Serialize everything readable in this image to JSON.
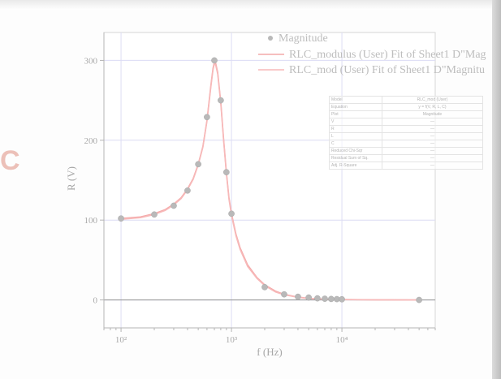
{
  "colors": {
    "fit_line": "#f4a8a8",
    "fit_line_2": "#f7b9b9",
    "points": "#b9b9b9",
    "axis": "#b5b5b5",
    "grid": "#dcdcf4",
    "zero_line": "#9c9c9c",
    "logo": "#e8b1a8"
  },
  "chart_data": {
    "type": "scatter",
    "x_scale": "log",
    "xlabel": "f (Hz)",
    "ylabel": "R (V)",
    "xlim": [
      70,
      70000
    ],
    "ylim": [
      -35,
      335
    ],
    "x_ticks": [
      100,
      1000,
      10000
    ],
    "x_tick_labels": [
      "10²",
      "10³",
      "10⁴"
    ],
    "y_ticks": [
      0,
      100,
      200,
      300
    ],
    "y_tick_labels": [
      "0",
      "100",
      "200",
      "300"
    ],
    "grid": true,
    "legend_position": "top-right",
    "legend": [
      {
        "label": "Magnitude",
        "marker": "circle"
      },
      {
        "label": "RLC_modulus (User) Fit of Sheet1 D\"Mag",
        "marker": "line"
      },
      {
        "label": "RLC_mod (User) Fit of Sheet1 D\"Magnitu",
        "marker": "line"
      }
    ],
    "series": [
      {
        "name": "Magnitude",
        "kind": "scatter",
        "x": [
          100,
          200,
          300,
          400,
          500,
          600,
          700,
          800,
          900,
          1000,
          2000,
          3000,
          4000,
          5000,
          6000,
          7000,
          8000,
          9000,
          10000,
          50000
        ],
        "y": [
          102,
          107,
          118,
          137,
          170,
          229,
          300,
          250,
          160,
          108,
          16,
          7,
          4,
          3,
          2,
          1.5,
          1.2,
          1,
          0.8,
          0
        ]
      },
      {
        "name": "RLC_modulus (User) Fit of Sheet1 D\"Mag",
        "kind": "line",
        "x": [
          100,
          150,
          200,
          250,
          300,
          350,
          400,
          450,
          500,
          550,
          600,
          650,
          680,
          700,
          720,
          750,
          800,
          850,
          900,
          950,
          1000,
          1100,
          1200,
          1400,
          1700,
          2000,
          2500,
          3000,
          4000,
          5000,
          7000,
          10000,
          20000,
          50000
        ],
        "y": [
          102,
          104,
          108,
          113,
          120,
          128,
          139,
          152,
          170,
          192,
          225,
          268,
          290,
          298,
          296,
          285,
          248,
          200,
          160,
          128,
          108,
          82,
          65,
          44,
          28,
          19,
          11,
          7,
          3.5,
          2,
          1,
          0.5,
          0.2,
          0
        ]
      },
      {
        "name": "RLC_mod (User) Fit of Sheet1 D\"Magnitu",
        "kind": "line",
        "x": [
          100,
          150,
          200,
          250,
          300,
          350,
          400,
          450,
          500,
          550,
          600,
          650,
          680,
          700,
          720,
          750,
          800,
          850,
          900,
          950,
          1000,
          1100,
          1200,
          1400,
          1700,
          2000,
          2500,
          3000,
          4000,
          5000,
          7000,
          10000,
          20000,
          50000
        ],
        "y": [
          101,
          103,
          107,
          112,
          119,
          127,
          138,
          151,
          169,
          191,
          224,
          266,
          288,
          296,
          294,
          283,
          246,
          198,
          158,
          126,
          106,
          80,
          63,
          42,
          27,
          18,
          10,
          6.5,
          3.2,
          1.8,
          0.9,
          0.4,
          0.2,
          0
        ]
      }
    ]
  },
  "param_table": [
    [
      "Model",
      "RLC_mod (User)"
    ],
    [
      "Equation",
      "y = f(V, R, L, C)"
    ],
    [
      "Plot",
      "Magnitude"
    ],
    [
      "V",
      "—"
    ],
    [
      "R",
      "—"
    ],
    [
      "L",
      "—"
    ],
    [
      "C",
      "—"
    ],
    [
      "Reduced Chi-Sqr",
      "—"
    ],
    [
      "Residual Sum of Sq.",
      "—"
    ],
    [
      "Adj. R-Square",
      "—"
    ]
  ]
}
